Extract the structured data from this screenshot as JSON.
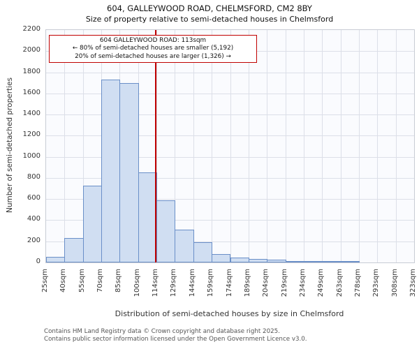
{
  "title": "604, GALLEYWOOD ROAD, CHELMSFORD, CM2 8BY",
  "subtitle": "Size of property relative to semi-detached houses in Chelmsford",
  "footer": {
    "line1": "Contains HM Land Registry data © Crown copyright and database right 2025.",
    "line2": "Contains public sector information licensed under the Open Government Licence v3.0."
  },
  "chart_data": {
    "type": "bar",
    "title": "604, GALLEYWOOD ROAD, CHELMSFORD, CM2 8BY — Size of property relative to semi-detached houses in Chelmsford",
    "xlabel": "Distribution of semi-detached houses by size in Chelmsford",
    "ylabel": "Number of semi-detached properties",
    "ylim": [
      0,
      2200
    ],
    "ytick_step": 200,
    "grid": true,
    "bin_edges": [
      25,
      40,
      55,
      70,
      85,
      100,
      114,
      129,
      144,
      159,
      174,
      189,
      204,
      219,
      234,
      249,
      263,
      278,
      293,
      308,
      323
    ],
    "tick_labels": [
      "25sqm",
      "40sqm",
      "55sqm",
      "70sqm",
      "85sqm",
      "100sqm",
      "114sqm",
      "129sqm",
      "144sqm",
      "159sqm",
      "174sqm",
      "189sqm",
      "204sqm",
      "219sqm",
      "234sqm",
      "249sqm",
      "263sqm",
      "278sqm",
      "293sqm",
      "308sqm",
      "323sqm"
    ],
    "values": [
      50,
      230,
      730,
      1730,
      1700,
      850,
      590,
      310,
      190,
      80,
      45,
      30,
      25,
      12,
      8,
      5,
      3,
      0,
      0,
      0
    ],
    "colors": {
      "bar_fill": "#d0def2",
      "bar_border": "#6a8fc8",
      "marker_line": "#c00000",
      "grid": "#dcdfe8"
    },
    "marker": {
      "value": 113,
      "label": "604 GALLEYWOOD ROAD: 113sqm",
      "smaller_text": "← 80% of semi-detached houses are smaller (5,192)",
      "larger_text": "20% of semi-detached houses are larger (1,326) →"
    }
  }
}
